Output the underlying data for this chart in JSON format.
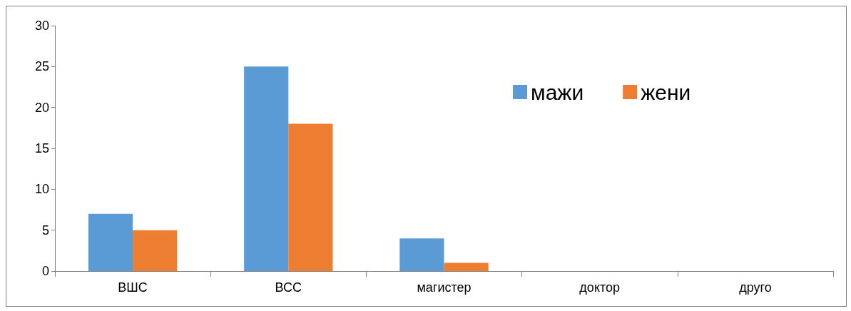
{
  "chart_data": {
    "type": "bar",
    "categories": [
      "ВШС",
      "ВСС",
      "магистер",
      "доктор",
      "друго"
    ],
    "series": [
      {
        "name": "мажи",
        "color": "#5b9bd5",
        "values": [
          7,
          25,
          4,
          0,
          0
        ]
      },
      {
        "name": "жени",
        "color": "#ed7d31",
        "values": [
          5,
          18,
          1,
          0,
          0
        ]
      }
    ],
    "ylim": [
      0,
      30
    ],
    "yticks": [
      0,
      5,
      10,
      15,
      20,
      25,
      30
    ],
    "grid": false,
    "legend": "top right"
  }
}
